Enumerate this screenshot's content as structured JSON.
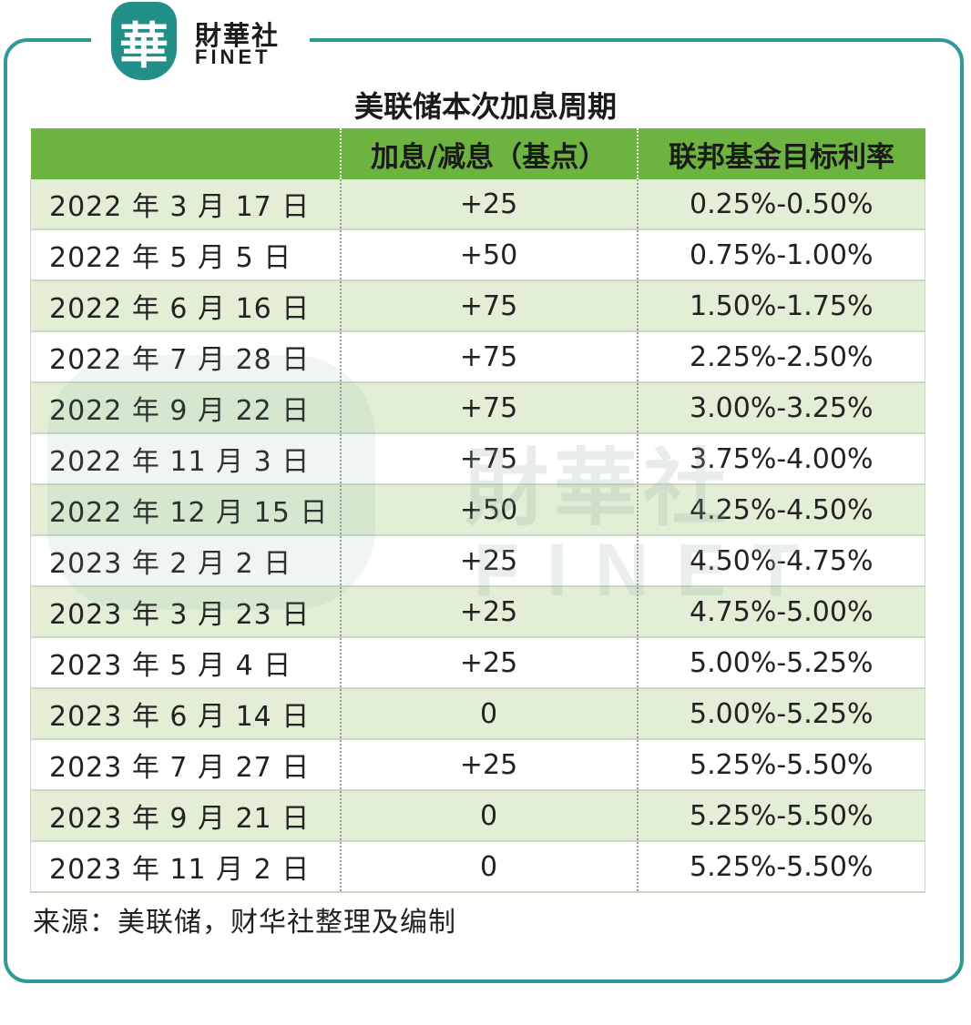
{
  "brand": {
    "logo_char": "華",
    "name_cn": "財華社",
    "name_en": "FINET"
  },
  "title": "美联储本次加息周期",
  "table": {
    "headers": [
      "",
      "加息/减息（基点）",
      "联邦基金目标利率"
    ],
    "rows": [
      [
        "2022 年 3 月 17 日",
        "+25",
        "0.25%-0.50%"
      ],
      [
        "2022 年 5 月 5 日",
        "+50",
        "0.75%-1.00%"
      ],
      [
        "2022 年 6 月 16 日",
        "+75",
        "1.50%-1.75%"
      ],
      [
        "2022 年 7 月 28 日",
        "+75",
        "2.25%-2.50%"
      ],
      [
        "2022 年 9 月 22 日",
        "+75",
        "3.00%-3.25%"
      ],
      [
        "2022 年 11 月 3 日",
        "+75",
        "3.75%-4.00%"
      ],
      [
        "2022 年 12 月 15 日",
        "+50",
        "4.25%-4.50%"
      ],
      [
        "2023 年 2 月 2 日",
        "+25",
        "4.50%-4.75%"
      ],
      [
        "2023 年 3 月 23 日",
        "+25",
        "4.75%-5.00%"
      ],
      [
        "2023 年 5 月 4 日",
        "+25",
        "5.00%-5.25%"
      ],
      [
        "2023 年 6 月 14 日",
        "0",
        "5.00%-5.25%"
      ],
      [
        "2023 年 7 月 27 日",
        "+25",
        "5.25%-5.50%"
      ],
      [
        "2023 年 9 月 21 日",
        "0",
        "5.25%-5.50%"
      ],
      [
        "2023 年 11 月 2 日",
        "0",
        "5.25%-5.50%"
      ]
    ]
  },
  "source": "来源：美联储，财华社整理及编制",
  "watermark": {
    "text_cn": "財華社",
    "text_en": "FINET"
  },
  "colors": {
    "frame": "#2f9a95",
    "header_bg": "#6db33f",
    "stripe_bg": "#e2efd6",
    "logo_bg": "#238f89"
  }
}
